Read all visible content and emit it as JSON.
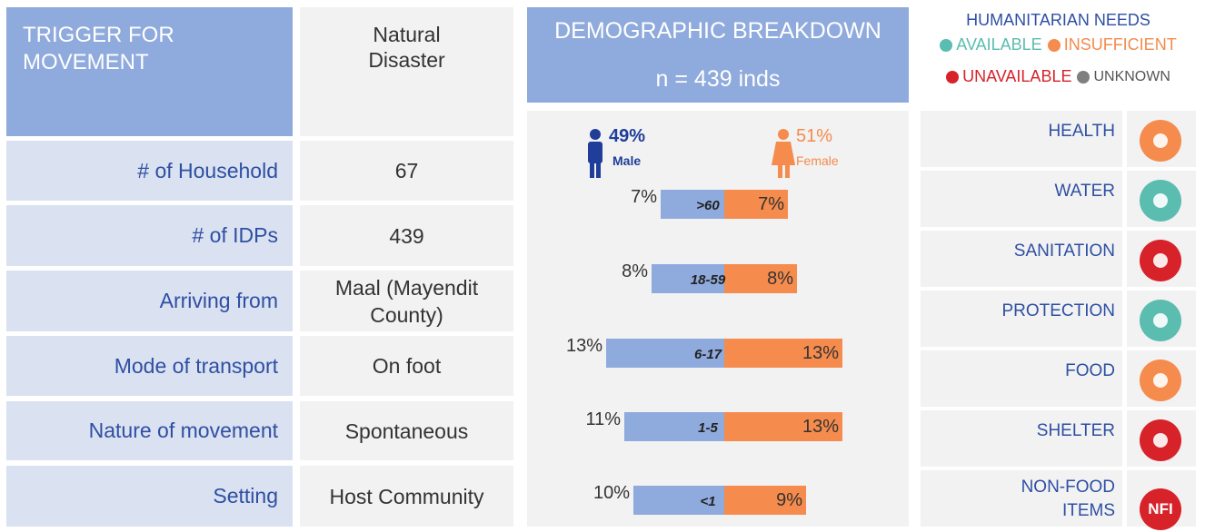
{
  "trigger": {
    "label": "TRIGGER FOR MOVEMENT",
    "value": "Natural Disaster"
  },
  "table": {
    "rows": [
      [
        "# of Household",
        "67"
      ],
      [
        "# of IDPs",
        "439"
      ],
      [
        "Arriving from",
        "Maal (Mayendit County)"
      ],
      [
        "Mode of transport",
        "On foot"
      ],
      [
        "Nature of movement",
        "Spontaneous"
      ],
      [
        "Setting",
        "Host Community"
      ]
    ]
  },
  "demographic": {
    "title": "DEMOGRAPHIC BREAKDOWN",
    "subtitle": "n = 439 inds",
    "male": {
      "percent": "49%",
      "label": "Male",
      "color": "#1f3d99"
    },
    "female": {
      "percent": "51%",
      "label": "Female",
      "color": "#f58b4c"
    },
    "age_groups": [
      ">60",
      "18-59",
      "6-17",
      "1-5",
      "<1"
    ],
    "male_values": [
      7,
      8,
      13,
      11,
      10
    ],
    "male_value_labels": [
      "7%",
      "8%",
      "13%",
      "11%",
      "10%"
    ],
    "female_values": [
      7,
      8,
      13,
      13,
      9
    ],
    "female_value_labels": [
      "7%",
      "8%",
      "13%",
      "13%",
      "9%"
    ],
    "male_bar_color": "#8faadc",
    "female_bar_color": "#f58b4c"
  },
  "needs": {
    "title": "HUMANITARIAN NEEDS",
    "legend": [
      {
        "label": "AVAILABLE",
        "color": "#5bbcb0"
      },
      {
        "label": "INSUFFICIENT",
        "color": "#f58b4c"
      },
      {
        "label": "UNAVAILABLE",
        "color": "#d7222a"
      },
      {
        "label": "UNKNOWN",
        "color": "#7f7f7f"
      }
    ],
    "items": [
      {
        "label": "HEALTH",
        "color": "#f58b4c"
      },
      {
        "label": "WATER",
        "color": "#5bbcb0"
      },
      {
        "label": "SANITATION",
        "color": "#d7222a"
      },
      {
        "label": "PROTECTION",
        "color": "#5bbcb0"
      },
      {
        "label": "FOOD",
        "color": "#f58b4c"
      },
      {
        "label": "SHELTER",
        "color": "#d7222a"
      },
      {
        "label": "NON-FOOD ITEMS",
        "color": "#d7222a",
        "icon_text": "NFI"
      }
    ]
  }
}
